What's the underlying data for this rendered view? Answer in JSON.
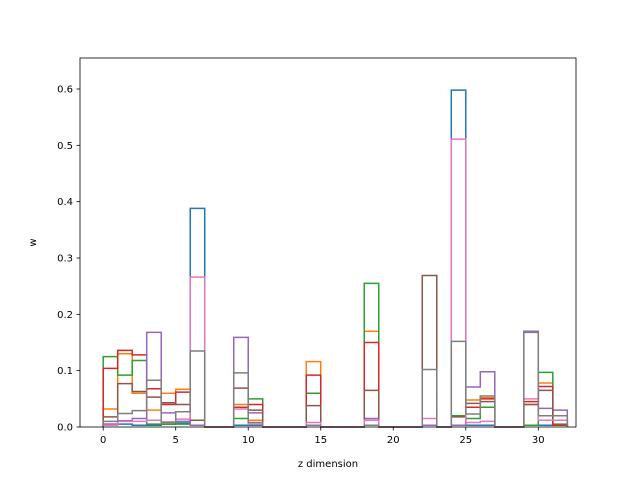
{
  "chart_data": {
    "type": "step-histogram",
    "title": "",
    "xlabel": "z dimension",
    "ylabel": "w",
    "xlim": [
      -1.6,
      32.6
    ],
    "ylim": [
      0,
      0.655
    ],
    "xticks": [
      0,
      5,
      10,
      15,
      20,
      25,
      30
    ],
    "yticks": [
      0.0,
      0.1,
      0.2,
      0.3,
      0.4,
      0.5,
      0.6
    ],
    "xtick_labels": [
      "0",
      "5",
      "10",
      "15",
      "20",
      "25",
      "30"
    ],
    "ytick_labels": [
      "0.0",
      "0.1",
      "0.2",
      "0.3",
      "0.4",
      "0.5",
      "0.6"
    ],
    "bin_edges": [
      0,
      1,
      2,
      3,
      4,
      5,
      6,
      7,
      8,
      9,
      10,
      11,
      12,
      13,
      14,
      15,
      16,
      17,
      18,
      19,
      20,
      21,
      22,
      23,
      24,
      25,
      26,
      27,
      28,
      29,
      30,
      31
    ],
    "series": [
      {
        "color": "#1f77b4",
        "values": [
          0.005,
          0.005,
          0.003,
          0.003,
          0.005,
          0.007,
          0.388,
          0,
          0,
          0.003,
          0.003,
          0,
          0,
          0,
          0.003,
          0,
          0,
          0,
          0.003,
          0,
          0,
          0,
          0.003,
          0,
          0.598,
          0.003,
          0.003,
          0,
          0,
          0.003,
          0.003,
          0.003
        ]
      },
      {
        "color": "#ff7f0e",
        "values": [
          0.032,
          0.13,
          0.06,
          0.03,
          0.06,
          0.067,
          0.012,
          0,
          0,
          0.04,
          0.012,
          0,
          0,
          0,
          0.116,
          0,
          0,
          0,
          0.17,
          0,
          0,
          0,
          0.003,
          0,
          0.003,
          0.048,
          0.052,
          0,
          0,
          0.04,
          0.078,
          0.003
        ]
      },
      {
        "color": "#2ca02c",
        "values": [
          0.125,
          0.092,
          0.118,
          0.005,
          0.005,
          0.005,
          0.012,
          0,
          0,
          0.015,
          0.05,
          0,
          0,
          0,
          0.06,
          0,
          0,
          0,
          0.255,
          0,
          0,
          0,
          0.003,
          0,
          0.02,
          0.015,
          0.035,
          0,
          0,
          0.003,
          0.097,
          0.005
        ]
      },
      {
        "color": "#d62728",
        "values": [
          0.104,
          0.136,
          0.128,
          0.068,
          0.04,
          0.062,
          0.003,
          0,
          0,
          0.035,
          0.04,
          0,
          0,
          0,
          0.092,
          0,
          0,
          0,
          0.15,
          0,
          0,
          0,
          0.003,
          0,
          0.003,
          0.035,
          0.05,
          0,
          0,
          0.045,
          0.072,
          0.003
        ]
      },
      {
        "color": "#9467bd",
        "values": [
          0.005,
          0.011,
          0.015,
          0.168,
          0.025,
          0.01,
          0.003,
          0,
          0,
          0.159,
          0.025,
          0,
          0,
          0,
          0.003,
          0,
          0,
          0,
          0.015,
          0,
          0,
          0,
          0.003,
          0,
          0.003,
          0.071,
          0.098,
          0,
          0,
          0.17,
          0.033,
          0.03
        ]
      },
      {
        "color": "#8c564b",
        "values": [
          0.018,
          0.077,
          0.063,
          0.053,
          0.043,
          0.04,
          0.012,
          0,
          0,
          0.069,
          0.03,
          0,
          0,
          0,
          0.038,
          0,
          0,
          0,
          0.065,
          0,
          0,
          0,
          0.269,
          0,
          0.018,
          0.042,
          0.045,
          0,
          0,
          0.04,
          0.065,
          0.012
        ]
      },
      {
        "color": "#e377c2",
        "values": [
          0.003,
          0.01,
          0.01,
          0.012,
          0.009,
          0.014,
          0.266,
          0,
          0,
          0.032,
          0.005,
          0,
          0,
          0,
          0.008,
          0,
          0,
          0,
          0.012,
          0,
          0,
          0,
          0.015,
          0,
          0.511,
          0.008,
          0.01,
          0,
          0,
          0.05,
          0.012,
          0.012
        ]
      },
      {
        "color": "#7f7f7f",
        "values": [
          0.01,
          0.024,
          0.029,
          0.083,
          0.008,
          0.027,
          0.135,
          0,
          0,
          0.096,
          0.008,
          0,
          0,
          0,
          0.003,
          0,
          0,
          0,
          0.003,
          0,
          0,
          0,
          0.102,
          0,
          0.152,
          0.023,
          0.055,
          0,
          0,
          0.168,
          0.02,
          0.02
        ]
      }
    ]
  }
}
